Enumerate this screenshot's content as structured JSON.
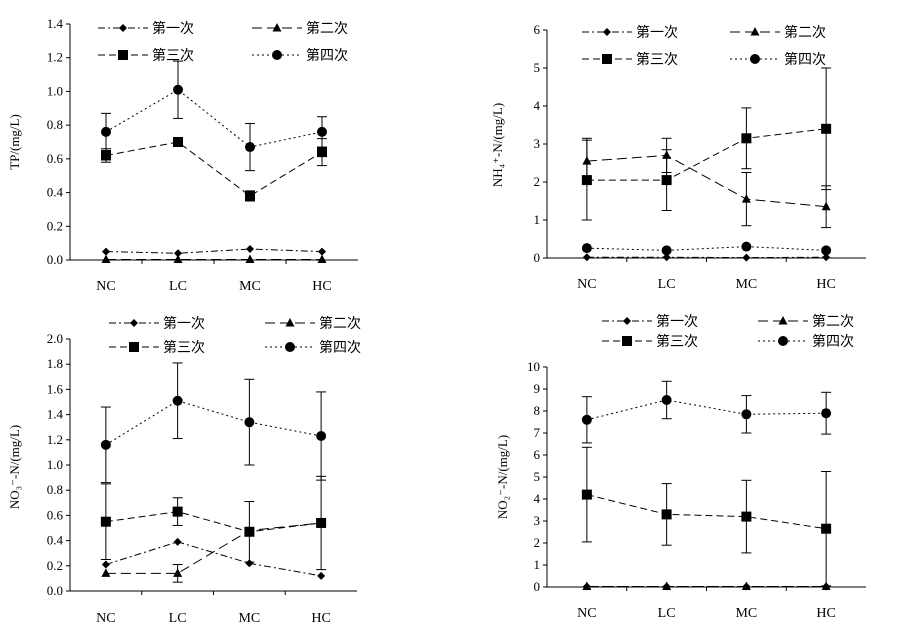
{
  "chart_data": [
    {
      "type": "line",
      "ylabel": "TP/(mg/L)",
      "categories": [
        "NC",
        "LC",
        "MC",
        "HC"
      ],
      "ylim": [
        0,
        1.4
      ],
      "yticks": [
        "0.0",
        "0.2",
        "0.4",
        "0.6",
        "0.8",
        "1.0",
        "1.2",
        "1.4"
      ],
      "legend": [
        "第一次",
        "第二次",
        "第三次",
        "第四次"
      ],
      "series": [
        {
          "name": "第一次",
          "marker": "diamond",
          "dash": "dashdot",
          "values": [
            0.05,
            0.04,
            0.065,
            0.05
          ],
          "err": [
            0,
            0,
            0,
            0
          ]
        },
        {
          "name": "第二次",
          "marker": "triangle",
          "dash": "longdash",
          "values": [
            0.003,
            0.003,
            0.003,
            0.003
          ],
          "err": [
            0,
            0,
            0,
            0
          ]
        },
        {
          "name": "第三次",
          "marker": "square",
          "dash": "dash",
          "values": [
            0.62,
            0.7,
            0.38,
            0.64
          ],
          "err": [
            0.04,
            0.02,
            0.03,
            0.08
          ]
        },
        {
          "name": "第四次",
          "marker": "circle",
          "dash": "dot",
          "values": [
            0.76,
            1.01,
            0.67,
            0.76
          ],
          "err": [
            0.11,
            0.17,
            0.14,
            0.09
          ]
        }
      ]
    },
    {
      "type": "line",
      "ylabel": "NH₄⁺-N/(mg/L)",
      "categories": [
        "NC",
        "LC",
        "MC",
        "HC"
      ],
      "ylim": [
        0,
        6
      ],
      "yticks": [
        "0",
        "1",
        "2",
        "3",
        "4",
        "5",
        "6"
      ],
      "legend": [
        "第一次",
        "第二次",
        "第三次",
        "第四次"
      ],
      "series": [
        {
          "name": "第一次",
          "marker": "diamond",
          "dash": "dashdot",
          "values": [
            0.02,
            0.02,
            0.01,
            0.02
          ],
          "err": [
            0,
            0,
            0,
            0
          ]
        },
        {
          "name": "第二次",
          "marker": "triangle",
          "dash": "longdash",
          "values": [
            2.55,
            2.7,
            1.55,
            1.35
          ],
          "err": [
            0.6,
            0.45,
            0.7,
            0.55
          ]
        },
        {
          "name": "第三次",
          "marker": "square",
          "dash": "dash",
          "values": [
            2.05,
            2.05,
            3.15,
            3.4
          ],
          "err": [
            1.05,
            0.8,
            0.8,
            1.6
          ]
        },
        {
          "name": "第四次",
          "marker": "circle",
          "dash": "dot",
          "values": [
            0.26,
            0.2,
            0.3,
            0.2
          ],
          "err": [
            0,
            0,
            0,
            0
          ]
        }
      ]
    },
    {
      "type": "line",
      "ylabel": "NO₃⁻-N/(mg/L)",
      "categories": [
        "NC",
        "LC",
        "MC",
        "HC"
      ],
      "ylim": [
        0,
        2.0
      ],
      "yticks": [
        "0.0",
        "0.2",
        "0.4",
        "0.6",
        "0.8",
        "1.0",
        "1.2",
        "1.4",
        "1.6",
        "1.8",
        "2.0"
      ],
      "legend": [
        "第一次",
        "第二次",
        "第三次",
        "第四次"
      ],
      "series": [
        {
          "name": "第一次",
          "marker": "diamond",
          "dash": "dashdot",
          "values": [
            0.21,
            0.39,
            0.22,
            0.12
          ],
          "err": [
            0,
            0,
            0,
            0
          ]
        },
        {
          "name": "第二次",
          "marker": "triangle",
          "dash": "longdash",
          "values": [
            0.14,
            0.14,
            0.48,
            0.54
          ],
          "err": [
            0,
            0.07,
            0,
            0
          ]
        },
        {
          "name": "第三次",
          "marker": "square",
          "dash": "dash",
          "values": [
            0.55,
            0.63,
            0.47,
            0.54
          ],
          "err": [
            0.3,
            0.11,
            0.24,
            0.37
          ]
        },
        {
          "name": "第四次",
          "marker": "circle",
          "dash": "dot",
          "values": [
            1.16,
            1.51,
            1.34,
            1.23
          ],
          "err": [
            0.3,
            0.3,
            0.34,
            0.35
          ]
        }
      ]
    },
    {
      "type": "line",
      "ylabel": "NO₂⁻-N/(mg/L)",
      "categories": [
        "NC",
        "LC",
        "MC",
        "HC"
      ],
      "ylim": [
        0,
        10
      ],
      "yticks": [
        "0",
        "1",
        "2",
        "3",
        "4",
        "5",
        "6",
        "7",
        "8",
        "9",
        "10"
      ],
      "legend": [
        "第一次",
        "第二次",
        "第三次",
        "第四次"
      ],
      "series": [
        {
          "name": "第一次",
          "marker": "diamond",
          "dash": "dashdot",
          "values": [
            0.02,
            0.02,
            0.02,
            0.02
          ],
          "err": [
            0,
            0,
            0,
            0
          ]
        },
        {
          "name": "第二次",
          "marker": "triangle",
          "dash": "longdash",
          "values": [
            0.02,
            0.02,
            0.02,
            0.02
          ],
          "err": [
            0,
            0,
            0,
            0
          ]
        },
        {
          "name": "第三次",
          "marker": "square",
          "dash": "dash",
          "values": [
            4.2,
            3.3,
            3.2,
            2.65
          ],
          "err": [
            2.15,
            1.4,
            1.65,
            2.6
          ]
        },
        {
          "name": "第四次",
          "marker": "circle",
          "dash": "dot",
          "values": [
            7.6,
            8.5,
            7.85,
            7.9
          ],
          "err": [
            1.05,
            0.85,
            0.85,
            0.95
          ]
        }
      ]
    }
  ]
}
